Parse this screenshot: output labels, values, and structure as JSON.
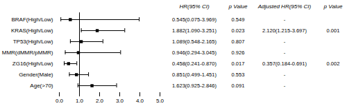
{
  "chart_data": {
    "type": "forest",
    "categories": [
      "BRAF(High/Low)",
      "KRAS(High/Low)",
      "TP53(High/Low)",
      "MMR(dMMR/pMMR)",
      "ZG16(High/Low)",
      "Gender(Male)",
      "Age(>70)"
    ],
    "values": [
      0.545,
      1.882,
      1.089,
      0.946,
      0.458,
      0.851,
      1.623
    ],
    "ci_lo": [
      0.075,
      1.09,
      0.548,
      0.294,
      0.241,
      0.499,
      0.925
    ],
    "ci_hi": [
      3.969,
      3.251,
      2.165,
      3.045,
      0.87,
      1.451,
      2.846
    ],
    "reference_line": 1,
    "xlim": [
      0,
      5
    ],
    "xticks": [
      0,
      1,
      2,
      3,
      4,
      5
    ],
    "columns": [
      {
        "header": "HR(95% CI)",
        "values": [
          "0.545(0.075-3.969)",
          "1.882(1.090-3.251)",
          "1.089(0.548-2.165)",
          "0.946(0.294-3.045)",
          "0.458(0.241-0.870)",
          "0.851(0.499-1.451)",
          "1.623(0.925-2.846)"
        ]
      },
      {
        "header": "p Value",
        "values": [
          "0.549",
          "0.023",
          "0.807",
          "0.926",
          "0.017",
          "0.553",
          "0.091"
        ]
      },
      {
        "header": "Adjusted HR(95% CI)",
        "values": [
          "-",
          "2.120(1.215-3.697)",
          "-",
          "-",
          "0.357(0.184-0.691)",
          "-",
          "-"
        ]
      },
      {
        "header": "p Value",
        "values": [
          null,
          "0.001",
          null,
          null,
          "0.002",
          null,
          null
        ]
      }
    ]
  }
}
